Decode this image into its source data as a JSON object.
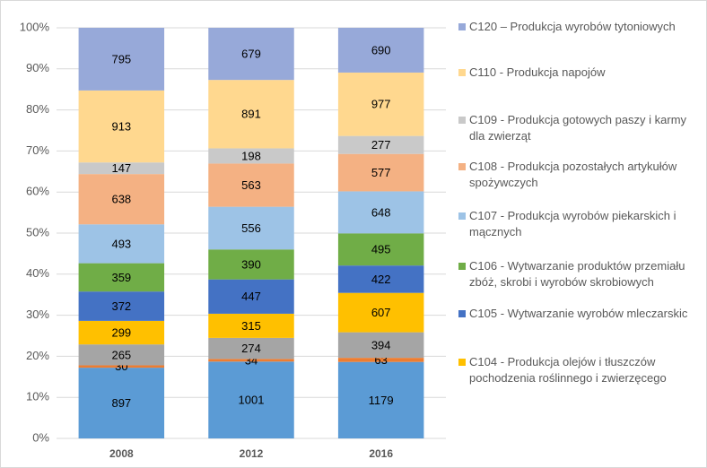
{
  "chart_data": {
    "type": "stacked_bar_100",
    "categories": [
      "2008",
      "2012",
      "2016"
    ],
    "series": [
      {
        "name": null,
        "color": "#5b9bd5",
        "values": [
          897,
          1001,
          1179
        ]
      },
      {
        "name": null,
        "color": "#ed7d31",
        "values": [
          30,
          34,
          63
        ]
      },
      {
        "name": null,
        "color": "#a5a5a5",
        "values": [
          265,
          274,
          394
        ]
      },
      {
        "name": "C104 - Produkcja olejów i tłuszczów pochodzenia roślinnego i zwierzęcego",
        "color": "#ffc000",
        "values": [
          299,
          315,
          607
        ]
      },
      {
        "name": "C105 - Wytwarzanie wyrobów mleczarskic",
        "color": "#4472c4",
        "values": [
          372,
          447,
          422
        ]
      },
      {
        "name": "C106 - Wytwarzanie produktów przemiału zbóż, skrobi i wyrobów skrobiowych",
        "color": "#70ad47",
        "values": [
          359,
          390,
          495
        ]
      },
      {
        "name": "C107 - Produkcja wyrobów piekarskich i mącznych",
        "color": "#9dc3e6",
        "values": [
          493,
          556,
          648
        ]
      },
      {
        "name": "C108 - Produkcja pozostałych artykułów spożywczych",
        "color": "#f4b183",
        "values": [
          638,
          563,
          577
        ]
      },
      {
        "name": "C109 - Produkcja gotowych paszy i karmy dla zwierząt",
        "color": "#c9c9c9",
        "values": [
          147,
          198,
          277
        ]
      },
      {
        "name": "C110 - Produkcja napojów",
        "color": "#ffd88f",
        "values": [
          913,
          891,
          977
        ]
      },
      {
        "name": "C120 – Produkcja wyrobów tytoniowych",
        "color": "#97a9d9",
        "values": [
          795,
          679,
          690
        ]
      }
    ],
    "ylim": [
      0,
      100
    ],
    "yticks": [
      {
        "value": 0,
        "label": "0%"
      },
      {
        "value": 10,
        "label": "10%"
      },
      {
        "value": 20,
        "label": "20%"
      },
      {
        "value": 30,
        "label": "30%"
      },
      {
        "value": 40,
        "label": "40%"
      },
      {
        "value": 50,
        "label": "50%"
      },
      {
        "value": 60,
        "label": "60%"
      },
      {
        "value": 70,
        "label": "70%"
      },
      {
        "value": 80,
        "label": "80%"
      },
      {
        "value": 90,
        "label": "90%"
      },
      {
        "value": 100,
        "label": "100%"
      }
    ],
    "grid": true
  }
}
